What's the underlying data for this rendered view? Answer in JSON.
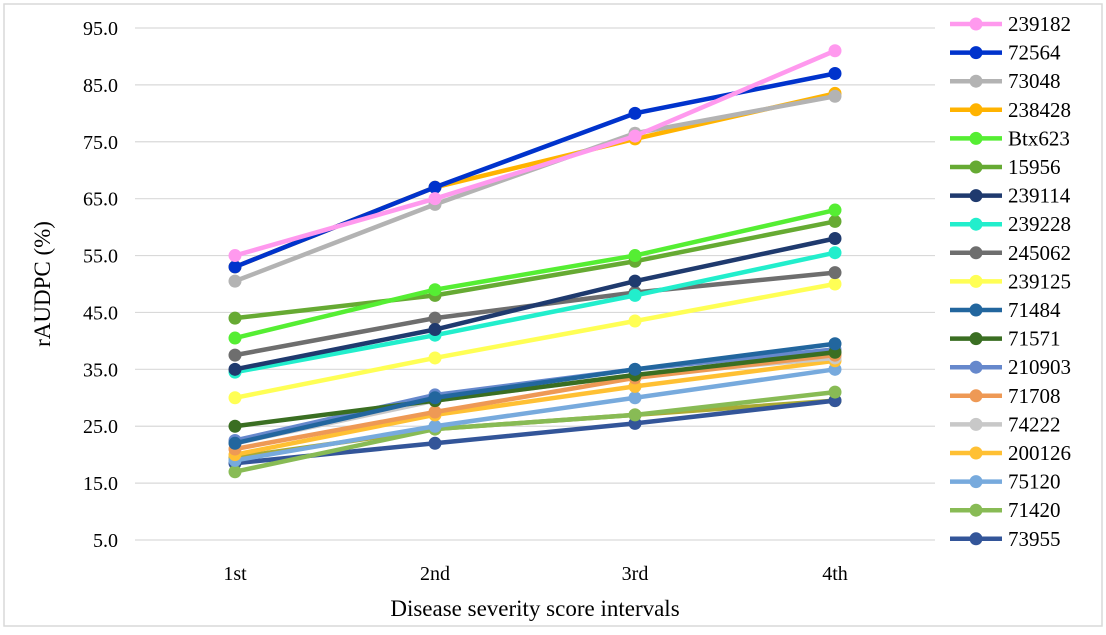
{
  "chart_data": {
    "type": "line",
    "title": "",
    "xlabel": "Disease severity score intervals",
    "ylabel": "rAUDPC  (%)",
    "categories": [
      "1st",
      "2nd",
      "3rd",
      "4th"
    ],
    "ylim": [
      5.0,
      95.0
    ],
    "yticks": [
      "5.0",
      "15.0",
      "25.0",
      "35.0",
      "45.0",
      "55.0",
      "65.0",
      "75.0",
      "85.0",
      "95.0"
    ],
    "grid": "horizontal",
    "legend_position": "right",
    "series": [
      {
        "name": "239182",
        "color": "#ff99ee",
        "values": [
          55.0,
          65.0,
          76.0,
          91.0
        ]
      },
      {
        "name": "72564",
        "color": "#0033cc",
        "values": [
          53.0,
          67.0,
          80.0,
          87.0
        ]
      },
      {
        "name": "73048",
        "color": "#b3b3b3",
        "values": [
          50.5,
          64.0,
          76.5,
          83.0
        ]
      },
      {
        "name": "238428",
        "color": "#ffb300",
        "values": [
          53.0,
          67.0,
          75.5,
          83.5
        ]
      },
      {
        "name": "Btx623",
        "color": "#55ee33",
        "values": [
          40.5,
          49.0,
          55.0,
          63.0
        ]
      },
      {
        "name": "15956",
        "color": "#66aa33",
        "values": [
          44.0,
          48.0,
          54.0,
          61.0
        ]
      },
      {
        "name": "239114",
        "color": "#1f3a6e",
        "values": [
          35.0,
          42.0,
          50.5,
          58.0
        ]
      },
      {
        "name": "239228",
        "color": "#22eecc",
        "values": [
          34.5,
          41.0,
          48.0,
          55.5
        ]
      },
      {
        "name": "245062",
        "color": "#6e6e6e",
        "values": [
          37.5,
          44.0,
          48.5,
          52.0
        ]
      },
      {
        "name": "239125",
        "color": "#ffff55",
        "values": [
          30.0,
          37.0,
          43.5,
          50.0
        ]
      },
      {
        "name": "71484",
        "color": "#22669e",
        "values": [
          22.0,
          30.0,
          35.0,
          39.5
        ]
      },
      {
        "name": "71571",
        "color": "#3a6e22",
        "values": [
          25.0,
          29.5,
          34.0,
          38.0
        ]
      },
      {
        "name": "210903",
        "color": "#6688cc",
        "values": [
          22.5,
          30.5,
          35.0,
          38.5
        ]
      },
      {
        "name": "71708",
        "color": "#ee9955",
        "values": [
          21.0,
          27.5,
          33.5,
          37.5
        ]
      },
      {
        "name": "74222",
        "color": "#c8c8c8",
        "values": [
          22.0,
          29.5,
          34.0,
          37.0
        ]
      },
      {
        "name": "200126",
        "color": "#ffc033",
        "values": [
          20.0,
          27.0,
          32.0,
          36.5
        ]
      },
      {
        "name": "75120",
        "color": "#77aadd",
        "values": [
          19.0,
          25.0,
          30.0,
          35.0
        ]
      },
      {
        "name": "71420",
        "color": "#88bb55",
        "values": [
          17.0,
          24.5,
          27.0,
          31.0
        ]
      },
      {
        "name": "73955",
        "color": "#335599",
        "values": [
          18.5,
          22.0,
          25.5,
          29.5
        ]
      }
    ],
    "extra_series": [
      {
        "color": "#aaaa33",
        "values": [
          19.5,
          24.5,
          27.0,
          29.5
        ]
      }
    ]
  }
}
